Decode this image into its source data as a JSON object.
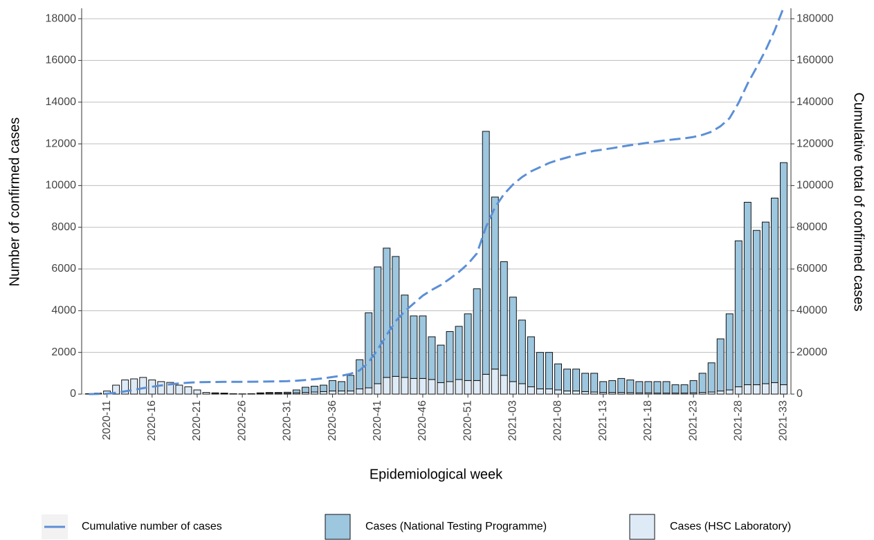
{
  "chart_data": {
    "type": "bar",
    "stacked": true,
    "x_label": "Epidemiological week",
    "y_label": "Number of confirmed cases",
    "y2_label": "Cumulative total of confirmed cases",
    "categories": [
      null,
      null,
      "2020-11",
      null,
      null,
      null,
      null,
      "2020-16",
      null,
      null,
      null,
      null,
      "2020-21",
      null,
      null,
      null,
      null,
      "2020-26",
      null,
      null,
      null,
      null,
      "2020-31",
      null,
      null,
      null,
      null,
      "2020-36",
      null,
      null,
      null,
      null,
      "2020-41",
      null,
      null,
      null,
      null,
      "2020-46",
      null,
      null,
      null,
      null,
      "2020-51",
      null,
      null,
      null,
      null,
      "2021-03",
      null,
      null,
      null,
      null,
      "2021-08",
      null,
      null,
      null,
      null,
      "2021-13",
      null,
      null,
      null,
      null,
      "2021-18",
      null,
      null,
      null,
      null,
      "2021-23",
      null,
      null,
      null,
      null,
      "2021-28",
      null,
      null,
      null,
      null,
      "2021-33"
    ],
    "series": [
      {
        "name": "Cumulative number of cases",
        "type": "line",
        "axis": "y2",
        "color": "#5b8fd6",
        "dashed": true,
        "values": [
          20,
          70,
          220,
          650,
          1330,
          2060,
          2860,
          3540,
          4140,
          4700,
          5130,
          5480,
          5680,
          5760,
          5820,
          5870,
          5890,
          5900,
          5920,
          5980,
          6060,
          6140,
          6230,
          6430,
          6760,
          7140,
          7570,
          8220,
          8820,
          9720,
          11370,
          15270,
          21370,
          28370,
          34970,
          39720,
          43470,
          47220,
          49970,
          52320,
          55320,
          58570,
          62420,
          67470,
          80070,
          89520,
          95870,
          100520,
          104070,
          106820,
          108820,
          110820,
          112270,
          113470,
          114670,
          115670,
          116670,
          117270,
          117920,
          118670,
          119350,
          119950,
          120550,
          121150,
          121750,
          122200,
          122650,
          123300,
          124300,
          125800,
          128450,
          132300,
          139650,
          148850,
          156700,
          164950,
          174350,
          185450
        ]
      },
      {
        "name": "Cases (National Testing Programme)",
        "type": "bar",
        "color": "#9dc6df",
        "values": [
          0,
          0,
          0,
          0,
          0,
          0,
          0,
          0,
          0,
          0,
          0,
          0,
          0,
          0,
          20,
          20,
          10,
          5,
          10,
          30,
          40,
          40,
          50,
          140,
          250,
          280,
          310,
          500,
          450,
          750,
          1400,
          3600,
          5600,
          6200,
          5750,
          3950,
          3000,
          3000,
          2050,
          1800,
          2400,
          2550,
          3200,
          4400,
          11650,
          8250,
          5450,
          4050,
          3050,
          2400,
          1750,
          1750,
          1250,
          1050,
          1050,
          880,
          900,
          520,
          570,
          670,
          610,
          540,
          540,
          550,
          550,
          400,
          400,
          590,
          920,
          1400,
          2500,
          3650,
          7000,
          8750,
          7400,
          7750,
          8850,
          10650
        ]
      },
      {
        "name": "Cases (HSC Laboratory)",
        "type": "bar",
        "color": "#deebf7",
        "values": [
          20,
          50,
          150,
          430,
          680,
          730,
          800,
          680,
          600,
          560,
          430,
          350,
          200,
          80,
          40,
          30,
          10,
          5,
          10,
          30,
          40,
          40,
          40,
          60,
          80,
          100,
          120,
          150,
          150,
          150,
          250,
          300,
          500,
          800,
          850,
          800,
          750,
          750,
          700,
          550,
          600,
          700,
          650,
          650,
          950,
          1200,
          900,
          600,
          500,
          350,
          250,
          250,
          200,
          150,
          150,
          120,
          100,
          80,
          80,
          80,
          70,
          60,
          60,
          50,
          50,
          50,
          50,
          60,
          80,
          100,
          150,
          200,
          350,
          450,
          450,
          500,
          550,
          450
        ]
      }
    ],
    "ylim": [
      0,
      18500
    ],
    "yticks": [
      0,
      2000,
      4000,
      6000,
      8000,
      10000,
      12000,
      14000,
      16000,
      18000
    ],
    "y2lim": [
      0,
      185000
    ],
    "y2ticks": [
      0,
      20000,
      40000,
      60000,
      80000,
      100000,
      120000,
      140000,
      160000,
      180000
    ],
    "grid": true,
    "legend": "bottom"
  }
}
